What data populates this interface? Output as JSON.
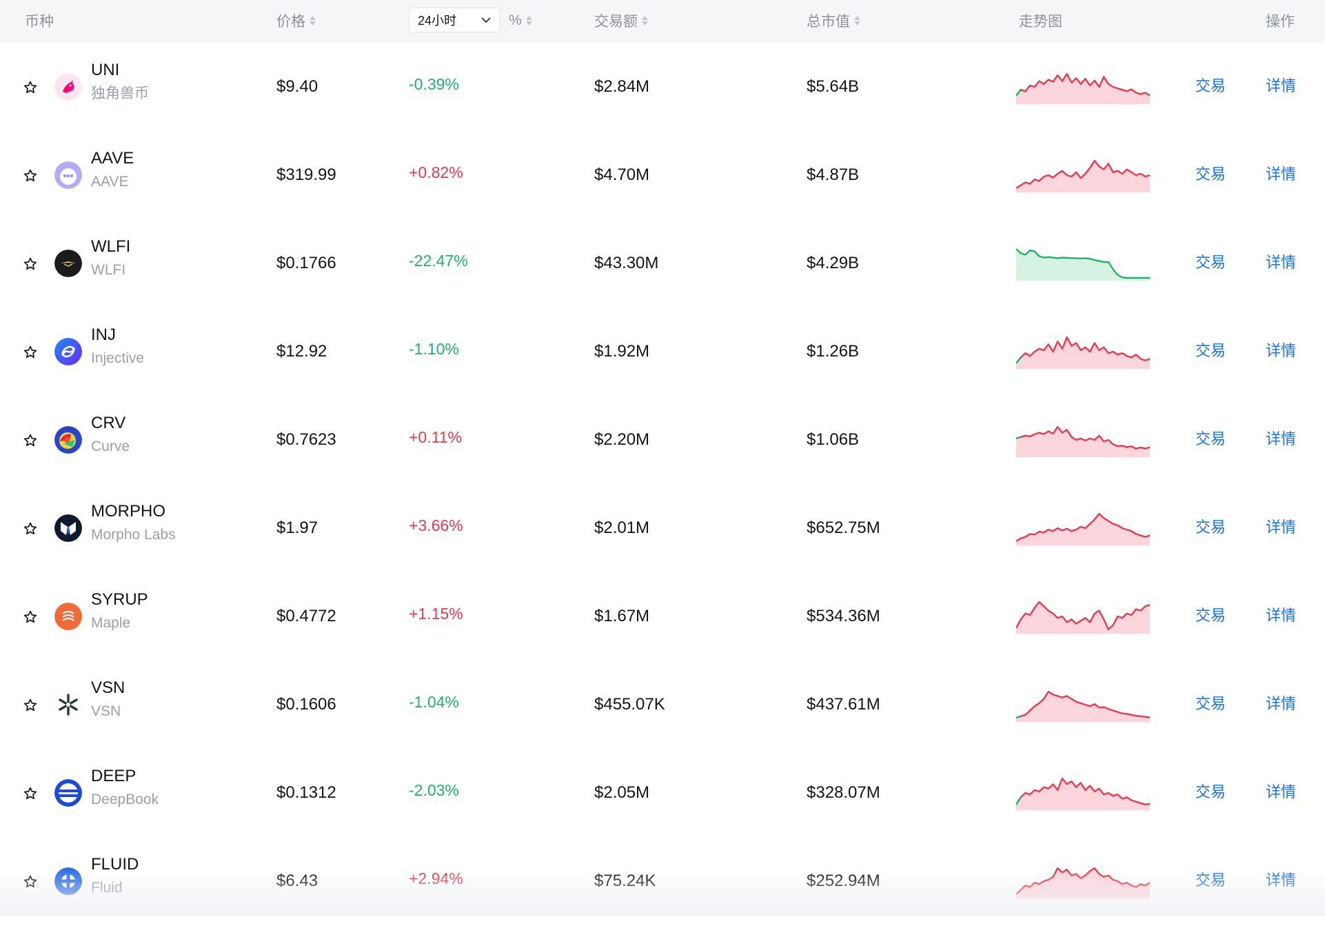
{
  "header": {
    "coin": "币种",
    "price": "价格",
    "period_selected": "24小时",
    "percent": "%",
    "volume": "交易额",
    "market_cap": "总市值",
    "trend": "走势图",
    "actions": "操作"
  },
  "actions": {
    "trade": "交易",
    "detail": "详情"
  },
  "colors": {
    "up": "#e8394f",
    "down": "#20b26c",
    "link": "#1a73e8"
  },
  "rows": [
    {
      "symbol": "UNI",
      "name": "独角兽币",
      "price": "$9.40",
      "change": "-0.39%",
      "direction": "down",
      "volume": "$2.84M",
      "market_cap": "$5.64B",
      "logo": "unicorn-logo",
      "trend_color": "mixed",
      "trend": [
        0.2,
        0.4,
        0.35,
        0.55,
        0.5,
        0.7,
        0.6,
        0.75,
        0.68,
        0.9,
        0.7,
        0.95,
        0.65,
        0.8,
        0.6,
        0.78,
        0.55,
        0.72,
        0.5,
        0.85,
        0.6,
        0.5,
        0.45,
        0.4,
        0.35,
        0.42,
        0.3,
        0.25,
        0.3,
        0.2
      ]
    },
    {
      "symbol": "AAVE",
      "name": "AAVE",
      "price": "$319.99",
      "change": "+0.82%",
      "direction": "up",
      "volume": "$4.70M",
      "market_cap": "$4.87B",
      "logo": "aave-logo",
      "trend_color": "up",
      "trend": [
        0.05,
        0.15,
        0.25,
        0.2,
        0.35,
        0.3,
        0.45,
        0.5,
        0.42,
        0.55,
        0.65,
        0.5,
        0.45,
        0.6,
        0.4,
        0.55,
        0.75,
        1.0,
        0.8,
        0.7,
        0.9,
        0.6,
        0.65,
        0.55,
        0.7,
        0.6,
        0.5,
        0.55,
        0.45,
        0.5
      ]
    },
    {
      "symbol": "WLFI",
      "name": "WLFI",
      "price": "$0.1766",
      "change": "-22.47%",
      "direction": "down",
      "volume": "$43.30M",
      "market_cap": "$4.29B",
      "logo": "wlfi-logo",
      "trend_color": "down",
      "trend": [
        1.0,
        0.85,
        0.8,
        0.95,
        0.92,
        0.75,
        0.7,
        0.72,
        0.7,
        0.68,
        0.7,
        0.69,
        0.68,
        0.68,
        0.67,
        0.68,
        0.66,
        0.62,
        0.58,
        0.55,
        0.55,
        0.3,
        0.1,
        0.02,
        0.0,
        0.0,
        0.0,
        0.0,
        0.0,
        0.0
      ]
    },
    {
      "symbol": "INJ",
      "name": "Injective",
      "price": "$12.92",
      "change": "-1.10%",
      "direction": "down",
      "volume": "$1.92M",
      "market_cap": "$1.26B",
      "logo": "injective-logo",
      "trend_color": "mixed",
      "trend": [
        0.1,
        0.3,
        0.45,
        0.35,
        0.5,
        0.6,
        0.55,
        0.75,
        0.5,
        0.85,
        0.6,
        1.0,
        0.7,
        0.8,
        0.55,
        0.65,
        0.5,
        0.8,
        0.55,
        0.65,
        0.45,
        0.5,
        0.4,
        0.45,
        0.35,
        0.3,
        0.4,
        0.25,
        0.2,
        0.25
      ]
    },
    {
      "symbol": "CRV",
      "name": "Curve",
      "price": "$0.7623",
      "change": "+0.11%",
      "direction": "up",
      "volume": "$2.20M",
      "market_cap": "$1.06B",
      "logo": "curve-logo",
      "trend_color": "mixed",
      "trend": [
        0.55,
        0.6,
        0.65,
        0.62,
        0.7,
        0.75,
        0.7,
        0.8,
        0.72,
        0.95,
        0.75,
        0.85,
        0.6,
        0.5,
        0.55,
        0.48,
        0.55,
        0.5,
        0.65,
        0.45,
        0.5,
        0.35,
        0.28,
        0.3,
        0.25,
        0.28,
        0.2,
        0.24,
        0.2,
        0.25
      ]
    },
    {
      "symbol": "MORPHO",
      "name": "Morpho Labs",
      "price": "$1.97",
      "change": "+3.66%",
      "direction": "up",
      "volume": "$2.01M",
      "market_cap": "$652.75M",
      "logo": "morpho-logo",
      "trend_color": "up",
      "trend": [
        0.05,
        0.15,
        0.2,
        0.3,
        0.28,
        0.38,
        0.35,
        0.45,
        0.4,
        0.5,
        0.42,
        0.48,
        0.4,
        0.45,
        0.55,
        0.5,
        0.65,
        0.8,
        1.0,
        0.85,
        0.75,
        0.65,
        0.6,
        0.5,
        0.45,
        0.4,
        0.3,
        0.25,
        0.2,
        0.25
      ]
    },
    {
      "symbol": "SYRUP",
      "name": "Maple",
      "price": "$0.4772",
      "change": "+1.15%",
      "direction": "up",
      "volume": "$1.67M",
      "market_cap": "$534.36M",
      "logo": "maple-logo",
      "trend_color": "up",
      "trend": [
        0.1,
        0.4,
        0.6,
        0.55,
        0.8,
        1.0,
        0.85,
        0.7,
        0.6,
        0.45,
        0.5,
        0.3,
        0.4,
        0.25,
        0.35,
        0.45,
        0.3,
        0.6,
        0.7,
        0.4,
        0.05,
        0.2,
        0.5,
        0.45,
        0.6,
        0.55,
        0.75,
        0.7,
        0.85,
        0.9
      ]
    },
    {
      "symbol": "VSN",
      "name": "VSN",
      "price": "$0.1606",
      "change": "-1.04%",
      "direction": "down",
      "volume": "$455.07K",
      "market_cap": "$437.61M",
      "logo": "vsn-logo",
      "trend_color": "mixed",
      "trend": [
        0.05,
        0.1,
        0.15,
        0.3,
        0.45,
        0.55,
        0.7,
        0.95,
        0.85,
        0.8,
        0.75,
        0.8,
        0.7,
        0.6,
        0.55,
        0.5,
        0.45,
        0.52,
        0.4,
        0.42,
        0.35,
        0.3,
        0.25,
        0.2,
        0.18,
        0.15,
        0.12,
        0.1,
        0.08,
        0.06
      ]
    },
    {
      "symbol": "DEEP",
      "name": "DeepBook",
      "price": "$0.1312",
      "change": "-2.03%",
      "direction": "down",
      "volume": "$2.05M",
      "market_cap": "$328.07M",
      "logo": "deepbook-logo",
      "trend_color": "mixed",
      "trend": [
        0.1,
        0.35,
        0.5,
        0.45,
        0.6,
        0.55,
        0.7,
        0.65,
        0.8,
        0.6,
        1.0,
        0.8,
        0.9,
        0.7,
        0.85,
        0.6,
        0.75,
        0.55,
        0.65,
        0.45,
        0.5,
        0.4,
        0.45,
        0.3,
        0.35,
        0.25,
        0.2,
        0.15,
        0.1,
        0.12
      ]
    },
    {
      "symbol": "FLUID",
      "name": "Fluid",
      "price": "$6.43",
      "change": "+2.94%",
      "direction": "up",
      "volume": "$75.24K",
      "market_cap": "$252.94M",
      "logo": "fluid-logo",
      "trend_color": "up",
      "trend": [
        0.05,
        0.2,
        0.35,
        0.3,
        0.45,
        0.4,
        0.5,
        0.55,
        0.65,
        0.95,
        0.8,
        0.9,
        0.7,
        0.75,
        0.6,
        0.7,
        0.85,
        0.95,
        0.75,
        0.65,
        0.7,
        0.55,
        0.5,
        0.4,
        0.45,
        0.35,
        0.3,
        0.4,
        0.35,
        0.45
      ]
    }
  ]
}
